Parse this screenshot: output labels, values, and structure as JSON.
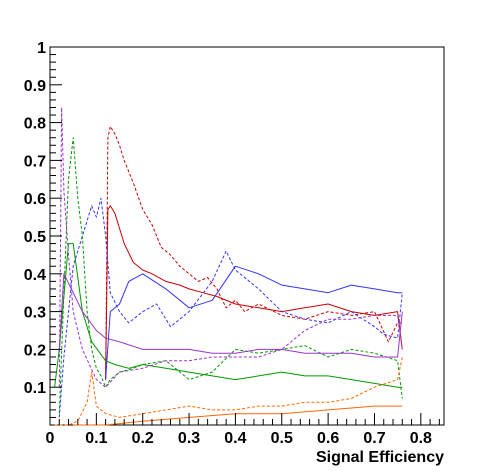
{
  "chart_data": {
    "type": "line",
    "title": "",
    "xlabel": "Signal Efficiency",
    "ylabel": "",
    "xlim": [
      0,
      0.85
    ],
    "ylim": [
      0,
      1
    ],
    "x_ticks": [
      "0",
      "0.1",
      "0.2",
      "0.3",
      "0.4",
      "0.5",
      "0.6",
      "0.7",
      "0.8"
    ],
    "y_ticks": [
      "0.1",
      "0.2",
      "0.3",
      "0.4",
      "0.5",
      "0.6",
      "0.7",
      "0.8",
      "0.9",
      "1"
    ],
    "grid": false,
    "legend": "none",
    "series": [
      {
        "color": "#cc0000",
        "dash": "3,2",
        "x": [
          0.12,
          0.125,
          0.13,
          0.14,
          0.15,
          0.16,
          0.18,
          0.2,
          0.22,
          0.24,
          0.26,
          0.28,
          0.3,
          0.32,
          0.34,
          0.36,
          0.38,
          0.4,
          0.42,
          0.45,
          0.5,
          0.55,
          0.6,
          0.65,
          0.7,
          0.73,
          0.75,
          0.76
        ],
        "y": [
          0.12,
          0.76,
          0.79,
          0.77,
          0.74,
          0.7,
          0.64,
          0.57,
          0.53,
          0.47,
          0.45,
          0.42,
          0.4,
          0.38,
          0.39,
          0.36,
          0.31,
          0.33,
          0.3,
          0.32,
          0.29,
          0.28,
          0.3,
          0.29,
          0.3,
          0.22,
          0.27,
          0.27
        ]
      },
      {
        "color": "#cc0000",
        "dash": "",
        "x": [
          0.12,
          0.125,
          0.13,
          0.14,
          0.15,
          0.16,
          0.18,
          0.2,
          0.22,
          0.25,
          0.28,
          0.3,
          0.33,
          0.36,
          0.4,
          0.45,
          0.5,
          0.55,
          0.6,
          0.65,
          0.7,
          0.75,
          0.76
        ],
        "y": [
          0.12,
          0.57,
          0.58,
          0.56,
          0.52,
          0.48,
          0.43,
          0.41,
          0.4,
          0.38,
          0.37,
          0.36,
          0.35,
          0.34,
          0.32,
          0.31,
          0.3,
          0.31,
          0.32,
          0.3,
          0.29,
          0.3,
          0.2
        ]
      },
      {
        "color": "#3333ff",
        "dash": "3,2",
        "x": [
          0.02,
          0.03,
          0.05,
          0.07,
          0.09,
          0.1,
          0.11,
          0.12,
          0.13,
          0.15,
          0.17,
          0.2,
          0.23,
          0.26,
          0.3,
          0.35,
          0.38,
          0.4,
          0.45,
          0.5,
          0.55,
          0.6,
          0.65,
          0.7,
          0.72,
          0.75,
          0.76
        ],
        "y": [
          0.02,
          0.18,
          0.42,
          0.5,
          0.58,
          0.55,
          0.6,
          0.5,
          0.35,
          0.3,
          0.27,
          0.3,
          0.32,
          0.26,
          0.3,
          0.38,
          0.46,
          0.41,
          0.36,
          0.3,
          0.28,
          0.27,
          0.3,
          0.26,
          0.24,
          0.23,
          0.35
        ]
      },
      {
        "color": "#3333ff",
        "dash": "",
        "x": [
          0.12,
          0.13,
          0.15,
          0.17,
          0.2,
          0.25,
          0.3,
          0.35,
          0.4,
          0.45,
          0.5,
          0.55,
          0.6,
          0.65,
          0.7,
          0.75,
          0.76
        ],
        "y": [
          0.12,
          0.3,
          0.32,
          0.38,
          0.4,
          0.36,
          0.31,
          0.33,
          0.42,
          0.4,
          0.37,
          0.36,
          0.35,
          0.37,
          0.36,
          0.35,
          0.35
        ]
      },
      {
        "color": "#009900",
        "dash": "3,2",
        "x": [
          0.02,
          0.03,
          0.04,
          0.05,
          0.06,
          0.07,
          0.08,
          0.09,
          0.1,
          0.11,
          0.12,
          0.13,
          0.15,
          0.18,
          0.2,
          0.25,
          0.3,
          0.35,
          0.4,
          0.45,
          0.5,
          0.55,
          0.6,
          0.65,
          0.7,
          0.75,
          0.76
        ],
        "y": [
          0.03,
          0.35,
          0.65,
          0.76,
          0.6,
          0.5,
          0.3,
          0.2,
          0.15,
          0.13,
          0.1,
          0.12,
          0.14,
          0.15,
          0.16,
          0.17,
          0.12,
          0.14,
          0.2,
          0.19,
          0.2,
          0.21,
          0.18,
          0.2,
          0.19,
          0.17,
          0.07
        ]
      },
      {
        "color": "#009900",
        "dash": "",
        "x": [
          0.01,
          0.02,
          0.04,
          0.05,
          0.07,
          0.09,
          0.12,
          0.14,
          0.17,
          0.2,
          0.25,
          0.3,
          0.35,
          0.4,
          0.45,
          0.5,
          0.55,
          0.6,
          0.65,
          0.7,
          0.75,
          0.76
        ],
        "y": [
          0.1,
          0.2,
          0.48,
          0.48,
          0.3,
          0.22,
          0.17,
          0.16,
          0.15,
          0.16,
          0.15,
          0.14,
          0.13,
          0.12,
          0.13,
          0.14,
          0.13,
          0.13,
          0.12,
          0.11,
          0.1,
          0.1
        ]
      },
      {
        "color": "#9933cc",
        "dash": "3,2",
        "x": [
          0.02,
          0.025,
          0.03,
          0.04,
          0.05,
          0.07,
          0.1,
          0.12,
          0.15,
          0.2,
          0.25,
          0.3,
          0.35,
          0.4,
          0.45,
          0.5,
          0.55,
          0.6,
          0.65,
          0.7,
          0.75,
          0.76
        ],
        "y": [
          0.1,
          0.84,
          0.62,
          0.45,
          0.3,
          0.2,
          0.12,
          0.1,
          0.14,
          0.15,
          0.17,
          0.17,
          0.18,
          0.18,
          0.18,
          0.2,
          0.25,
          0.28,
          0.28,
          0.29,
          0.29,
          0.2
        ]
      },
      {
        "color": "#9933cc",
        "dash": "",
        "x": [
          0.02,
          0.03,
          0.05,
          0.07,
          0.1,
          0.12,
          0.15,
          0.2,
          0.25,
          0.3,
          0.35,
          0.4,
          0.45,
          0.5,
          0.55,
          0.6,
          0.65,
          0.7,
          0.75,
          0.76
        ],
        "y": [
          0.2,
          0.4,
          0.35,
          0.3,
          0.25,
          0.23,
          0.22,
          0.2,
          0.2,
          0.2,
          0.19,
          0.19,
          0.2,
          0.2,
          0.19,
          0.19,
          0.19,
          0.18,
          0.18,
          0.3
        ]
      },
      {
        "color": "#ff6600",
        "dash": "3,2",
        "x": [
          0.01,
          0.02,
          0.04,
          0.06,
          0.08,
          0.09,
          0.1,
          0.12,
          0.15,
          0.2,
          0.25,
          0.3,
          0.35,
          0.4,
          0.45,
          0.5,
          0.55,
          0.6,
          0.65,
          0.7,
          0.75,
          0.76
        ],
        "y": [
          0.0,
          0.0,
          0.0,
          0.01,
          0.06,
          0.14,
          0.05,
          0.03,
          0.02,
          0.03,
          0.04,
          0.05,
          0.04,
          0.04,
          0.05,
          0.05,
          0.06,
          0.06,
          0.07,
          0.1,
          0.12,
          0.18
        ]
      },
      {
        "color": "#ff6600",
        "dash": "",
        "x": [
          0.05,
          0.1,
          0.12,
          0.2,
          0.3,
          0.4,
          0.5,
          0.6,
          0.7,
          0.75,
          0.76
        ],
        "y": [
          0.0,
          0.0,
          0.0,
          0.01,
          0.02,
          0.03,
          0.03,
          0.04,
          0.05,
          0.05,
          0.05
        ]
      }
    ]
  }
}
